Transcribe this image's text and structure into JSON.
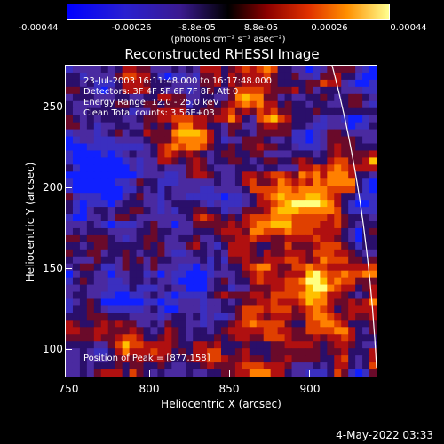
{
  "colorbar": {
    "tick_labels": [
      "-0.00044",
      "-0.00026",
      "-8.8e-05",
      "8.8e-05",
      "0.00026",
      "0.00044"
    ],
    "units": "(photons cm⁻² s⁻¹ asec⁻²)"
  },
  "title": "Reconstructed RHESSI Image",
  "info": {
    "time": "23-Jul-2003 16:11:48.000 to 16:17:48.000",
    "detectors": "Detectors: 3F 4F 5F 6F 7F 8F, Att 0",
    "energy": "Energy Range: 12.0 - 25.0 keV",
    "clean": "Clean     Total counts: 3.56E+03"
  },
  "peak": "Position of Peak = [877,158]",
  "axes": {
    "xlabel": "Heliocentric X (arcsec)",
    "ylabel": "Heliocentric Y (arcsec)",
    "xticks": [
      "750",
      "800",
      "850",
      "900"
    ],
    "yticks": [
      "250",
      "200",
      "150",
      "100"
    ]
  },
  "timestamp": "4-May-2022 03:33",
  "colors": {
    "colormap": [
      "#1020ff",
      "#3a2fc0",
      "#4a2aa0",
      "#2a0f6a",
      "#6a0a2a",
      "#b01010",
      "#e04000",
      "#ff8000",
      "#ffc000",
      "#ffff80"
    ]
  }
}
